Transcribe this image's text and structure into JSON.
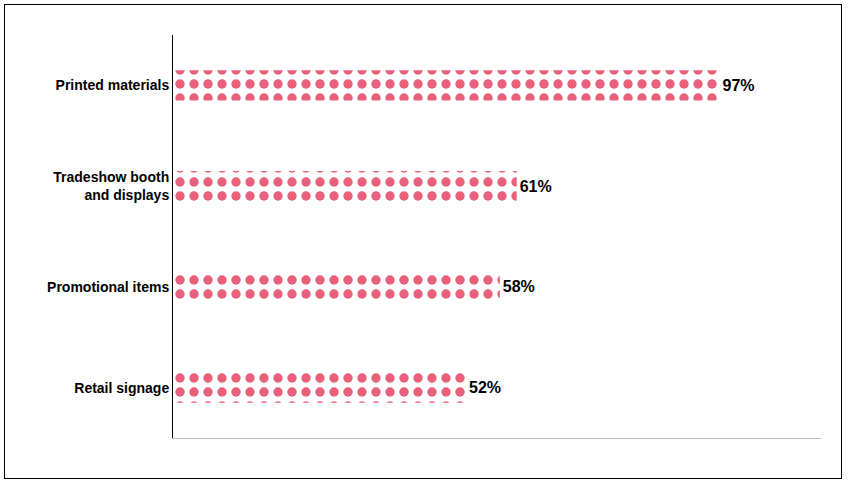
{
  "chart_data": {
    "type": "bar",
    "orientation": "horizontal",
    "categories": [
      "Printed materials",
      "Tradeshow booth and displays",
      "Promotional items",
      "Retail signage"
    ],
    "values": [
      97,
      61,
      58,
      52
    ],
    "value_labels": [
      "97%",
      "61%",
      "58%",
      "52%"
    ],
    "data_labels": true,
    "color": "#1c1414",
    "xlim": [
      0,
      115
    ],
    "tick_labels": "y",
    "grid": false
  }
}
